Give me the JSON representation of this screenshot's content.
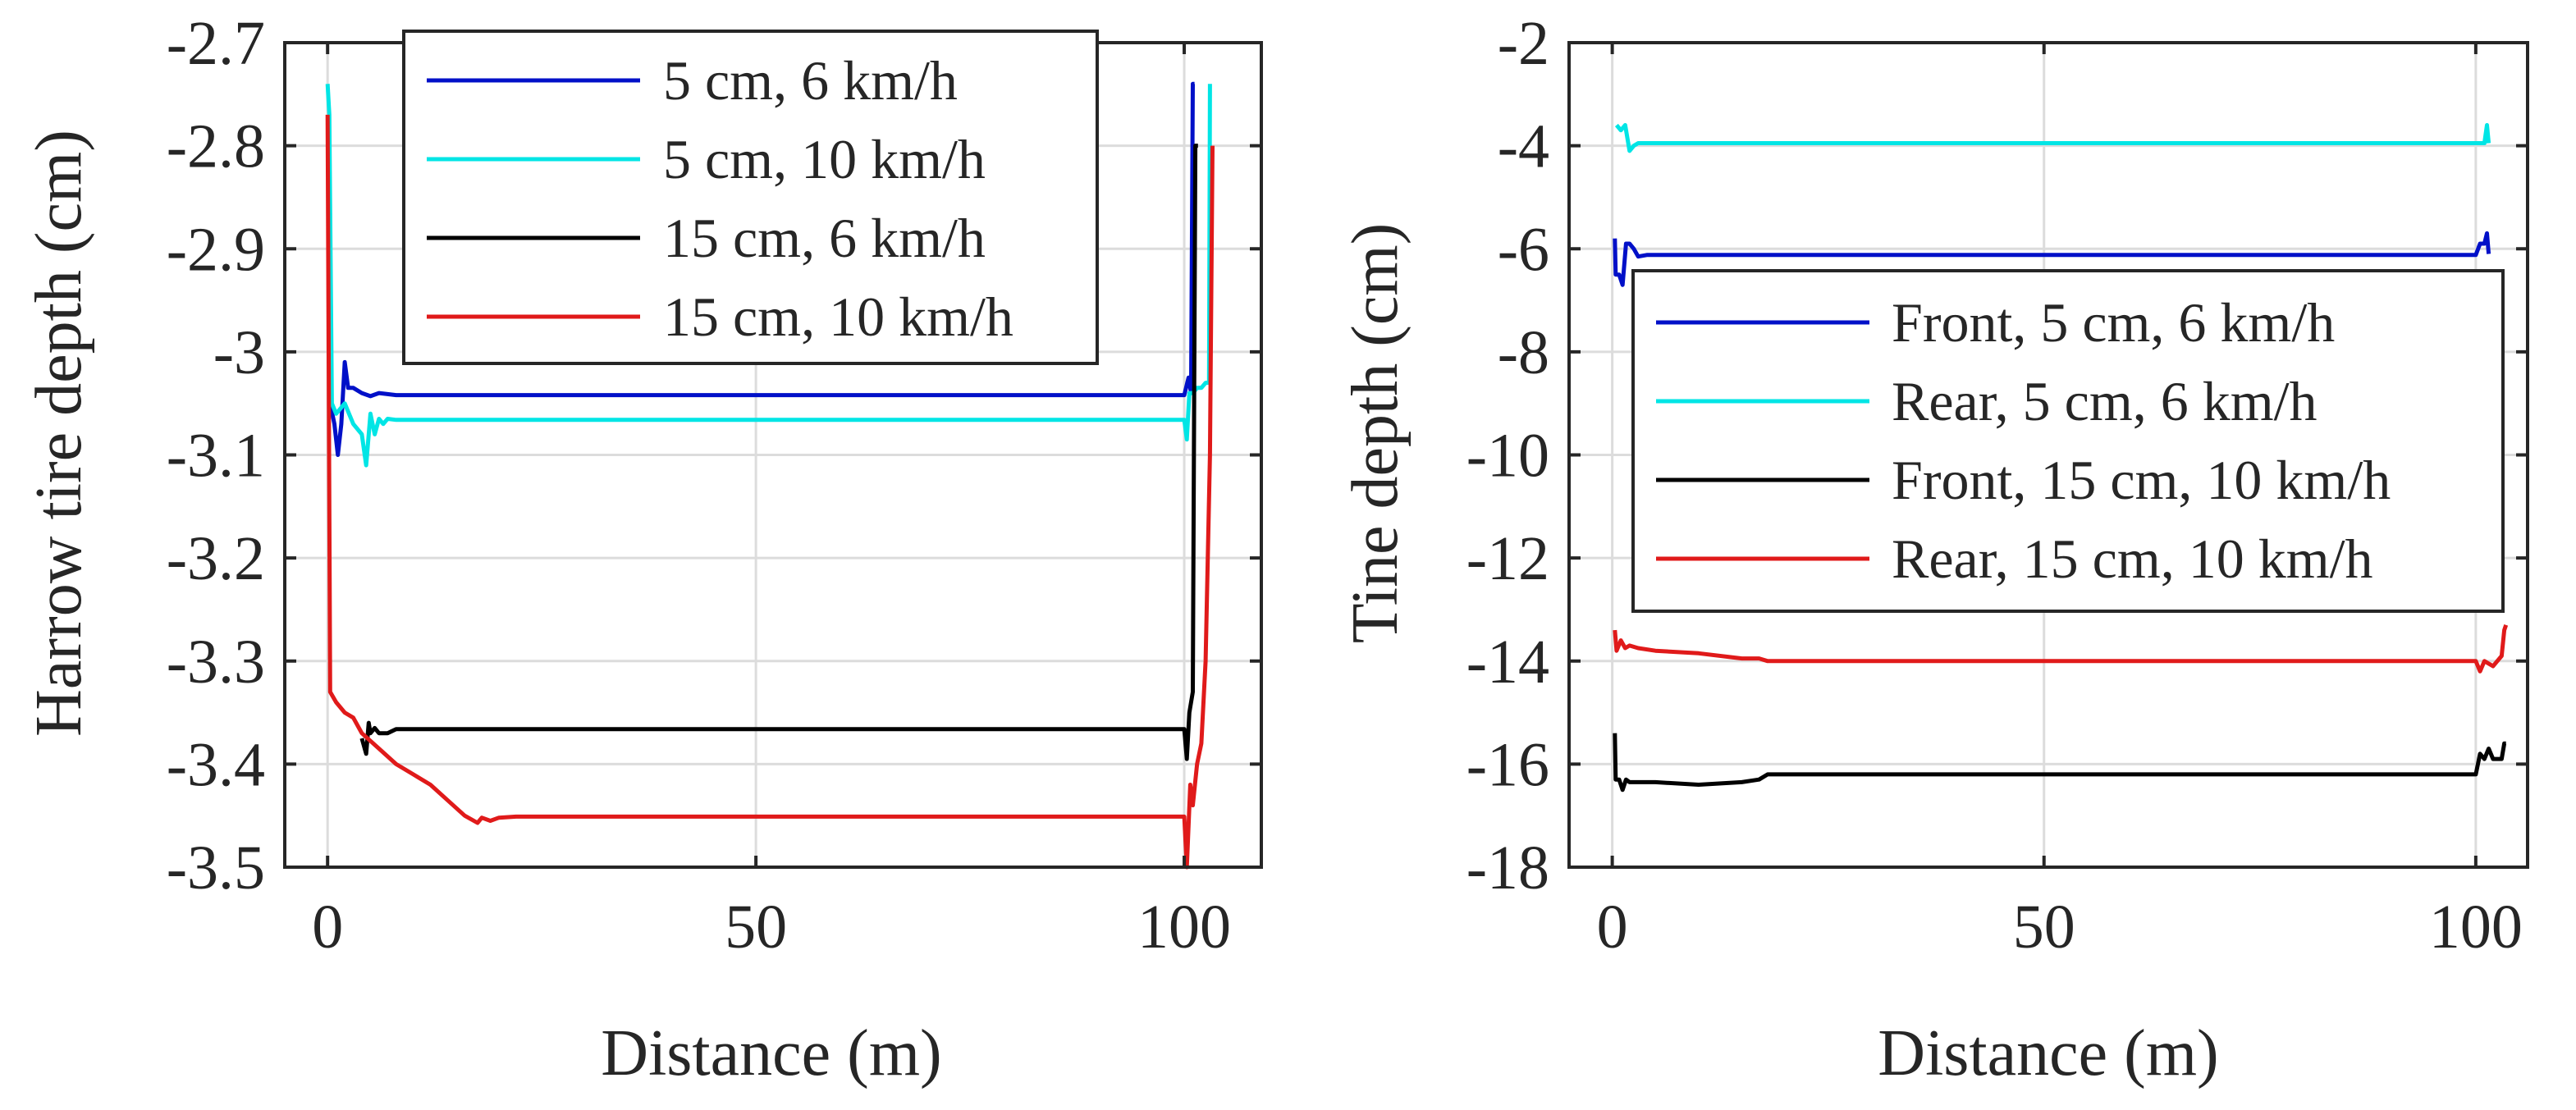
{
  "chart_data": [
    {
      "type": "line",
      "xlabel": "Distance (m)",
      "ylabel": "Harrow tire depth (cm)",
      "xlim": [
        -5,
        109
      ],
      "ylim": [
        -3.5,
        -2.7
      ],
      "xticks": [
        0,
        50,
        100
      ],
      "yticks": [
        -2.7,
        -2.8,
        -2.9,
        -3.0,
        -3.1,
        -3.2,
        -3.3,
        -3.4,
        -3.5
      ],
      "xtick_labels": [
        "0",
        "50",
        "100"
      ],
      "ytick_labels": [
        "-2.7",
        "-2.8",
        "-2.9",
        "-3",
        "-3.1",
        "-3.2",
        "-3.3",
        "-3.4",
        "-3.5"
      ],
      "grid": true,
      "legend_position": "top-center",
      "series": [
        {
          "name": "5 cm, 6 km/h",
          "color": "#0010c8",
          "x": [
            0.3,
            0.8,
            1.2,
            1.6,
            2.0,
            2.4,
            3.0,
            4.0,
            5.0,
            6.0,
            8.0,
            20,
            50,
            80,
            100.0,
            100.5,
            100.8,
            101.0,
            101.2
          ],
          "y": [
            -3.05,
            -3.07,
            -3.1,
            -3.07,
            -3.01,
            -3.035,
            -3.035,
            -3.04,
            -3.043,
            -3.04,
            -3.042,
            -3.042,
            -3.042,
            -3.042,
            -3.042,
            -3.025,
            -3.04,
            -2.74,
            -2.74
          ]
        },
        {
          "name": "5 cm, 10 km/h",
          "color": "#00e5e5",
          "x": [
            0.0,
            0.2,
            0.5,
            1.0,
            2.0,
            3.0,
            4.0,
            4.5,
            5.0,
            5.5,
            6.0,
            6.5,
            7.0,
            8.0,
            20,
            50,
            80,
            100.0,
            100.3,
            100.6,
            101.0,
            101.5,
            102.0,
            102.5,
            102.9,
            103.0
          ],
          "y": [
            -2.74,
            -2.77,
            -3.05,
            -3.06,
            -3.05,
            -3.07,
            -3.08,
            -3.11,
            -3.06,
            -3.08,
            -3.065,
            -3.07,
            -3.065,
            -3.066,
            -3.066,
            -3.066,
            -3.066,
            -3.066,
            -3.085,
            -3.04,
            -3.04,
            -3.035,
            -3.035,
            -3.03,
            -3.03,
            -2.74
          ]
        },
        {
          "name": "15 cm, 6 km/h",
          "color": "#000000",
          "x": [
            4.0,
            4.5,
            4.8,
            5.0,
            5.5,
            6.0,
            7.0,
            8.0,
            20,
            50,
            80,
            100.0,
            100.3,
            100.6,
            101.0,
            101.3,
            101.6
          ],
          "y": [
            -3.375,
            -3.39,
            -3.36,
            -3.37,
            -3.365,
            -3.37,
            -3.37,
            -3.366,
            -3.366,
            -3.366,
            -3.366,
            -3.366,
            -3.395,
            -3.35,
            -3.33,
            -2.8,
            -2.8
          ]
        },
        {
          "name": "15 cm, 10 km/h",
          "color": "#e01a1a",
          "x": [
            0.0,
            0.3,
            1.0,
            2.0,
            3.0,
            4.0,
            6.0,
            8.0,
            10.0,
            12.0,
            14.0,
            16.0,
            17.5,
            18.0,
            19.0,
            20.0,
            22.0,
            30,
            50,
            80,
            100.0,
            100.3,
            100.7,
            101.0,
            101.5,
            102.0,
            102.5,
            103.0,
            103.3
          ],
          "y": [
            -2.77,
            -3.33,
            -3.34,
            -3.35,
            -3.355,
            -3.37,
            -3.385,
            -3.4,
            -3.41,
            -3.42,
            -3.435,
            -3.45,
            -3.457,
            -3.452,
            -3.455,
            -3.452,
            -3.451,
            -3.451,
            -3.451,
            -3.451,
            -3.451,
            -3.5,
            -3.42,
            -3.44,
            -3.4,
            -3.38,
            -3.3,
            -3.1,
            -2.8
          ]
        }
      ]
    },
    {
      "type": "line",
      "xlabel": "Distance (m)",
      "ylabel": "Tine depth (cm)",
      "xlim": [
        -5,
        106
      ],
      "ylim": [
        -18,
        -2
      ],
      "xticks": [
        0,
        50,
        100
      ],
      "yticks": [
        -2,
        -4,
        -6,
        -8,
        -10,
        -12,
        -14,
        -16,
        -18
      ],
      "xtick_labels": [
        "0",
        "50",
        "100"
      ],
      "ytick_labels": [
        "-2",
        "-4",
        "-6",
        "-8",
        "-10",
        "-12",
        "-14",
        "-16",
        "-18"
      ],
      "grid": true,
      "legend_position": "center-right",
      "series": [
        {
          "name": "Front, 5 cm, 6 km/h",
          "color": "#0010c8",
          "x": [
            0.3,
            0.4,
            0.8,
            1.2,
            1.6,
            2.0,
            2.5,
            3.0,
            4.0,
            10,
            50,
            100.0,
            100.5,
            101.0,
            101.3,
            101.5
          ],
          "y": [
            -5.8,
            -6.5,
            -6.5,
            -6.7,
            -5.9,
            -5.9,
            -6.0,
            -6.15,
            -6.12,
            -6.12,
            -6.12,
            -6.12,
            -5.9,
            -5.9,
            -5.7,
            -6.1
          ]
        },
        {
          "name": "Rear, 5 cm, 6 km/h",
          "color": "#00e5e5",
          "x": [
            0.5,
            1.0,
            1.5,
            2.0,
            2.5,
            3.0,
            4.0,
            10,
            50,
            100.0,
            100.5,
            101.0,
            101.3,
            101.5
          ],
          "y": [
            -3.6,
            -3.7,
            -3.6,
            -4.1,
            -4.0,
            -3.95,
            -3.95,
            -3.95,
            -3.95,
            -3.95,
            -3.95,
            -3.95,
            -3.6,
            -3.95
          ]
        },
        {
          "name": "Front, 15 cm, 10 km/h",
          "color": "#000000",
          "x": [
            0.3,
            0.4,
            0.8,
            1.2,
            1.6,
            2.0,
            3.0,
            5.0,
            10.0,
            15.0,
            17.0,
            18.0,
            20,
            50,
            100.0,
            100.5,
            101.0,
            101.5,
            102.0,
            102.5,
            103.0,
            103.3,
            103.5
          ],
          "y": [
            -15.4,
            -16.3,
            -16.3,
            -16.5,
            -16.3,
            -16.35,
            -16.35,
            -16.35,
            -16.4,
            -16.35,
            -16.3,
            -16.2,
            -16.2,
            -16.2,
            -16.2,
            -15.8,
            -15.9,
            -15.7,
            -15.9,
            -15.9,
            -15.9,
            -15.6,
            -15.6
          ]
        },
        {
          "name": "Rear, 15 cm, 10 km/h",
          "color": "#e01a1a",
          "x": [
            0.3,
            0.5,
            1.0,
            1.5,
            2.0,
            3.0,
            5.0,
            10.0,
            15.0,
            17.0,
            18.0,
            20,
            50,
            100.0,
            100.5,
            101.0,
            102.0,
            103.0,
            103.3,
            103.5
          ],
          "y": [
            -13.4,
            -13.8,
            -13.6,
            -13.75,
            -13.7,
            -13.75,
            -13.8,
            -13.85,
            -13.95,
            -13.95,
            -14.0,
            -14.0,
            -14.0,
            -14.0,
            -14.2,
            -14.0,
            -14.1,
            -13.9,
            -13.4,
            -13.3
          ]
        }
      ]
    }
  ]
}
